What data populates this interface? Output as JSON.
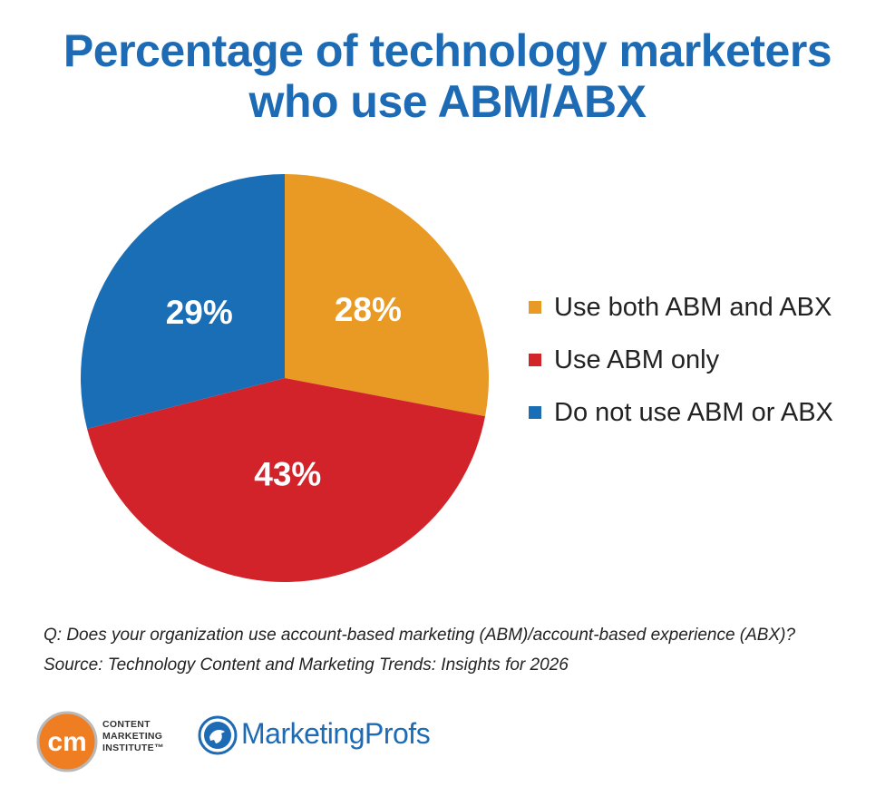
{
  "title_lines": [
    "Percentage of technology marketers",
    "who use ABM/ABX"
  ],
  "chart_data": {
    "type": "pie",
    "categories": [
      "Use both ABM and ABX",
      "Use ABM only",
      "Do not use ABM or ABX"
    ],
    "values": [
      28,
      43,
      29
    ],
    "labels": [
      "28%",
      "43%",
      "29%"
    ],
    "colors": [
      "#e99a24",
      "#d2232a",
      "#1a6eb5"
    ],
    "legend_position": "right"
  },
  "notes": {
    "question": "Q: Does your organization use account-based marketing (ABM)/account-based experience (ABX)?",
    "source": "Source: Technology Content and Marketing Trends: Insights for 2026"
  },
  "logos": {
    "cmi_badge": "cm",
    "cmi_lines": [
      "CONTENT",
      "MARKETING",
      "INSTITUTE™"
    ],
    "marketingprofs": "MarketingProfs"
  }
}
